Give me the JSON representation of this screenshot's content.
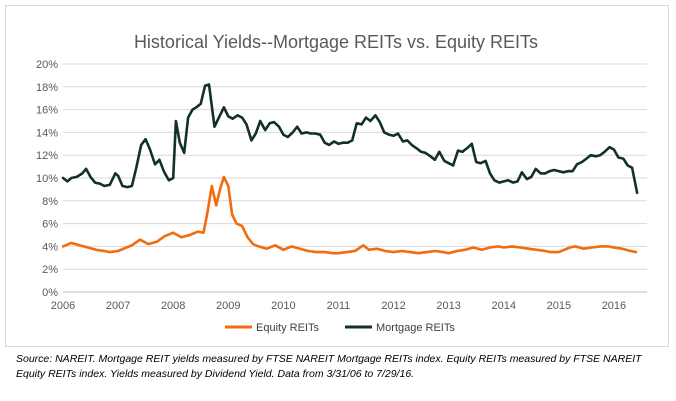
{
  "chart_data": {
    "type": "line",
    "title": "Historical Yields--Mortgage REITs vs. Equity REITs",
    "xlabel": "",
    "ylabel": "",
    "xlim": [
      2006,
      2016.6
    ],
    "ylim": [
      0,
      20
    ],
    "x_ticks": [
      "2006",
      "2007",
      "2008",
      "2009",
      "2010",
      "2011",
      "2012",
      "2013",
      "2014",
      "2015",
      "2016"
    ],
    "y_ticks": [
      "0%",
      "2%",
      "4%",
      "6%",
      "8%",
      "10%",
      "12%",
      "14%",
      "16%",
      "18%",
      "20%"
    ],
    "grid": true,
    "legend_position": "bottom-center",
    "series": [
      {
        "name": "Equity REITs",
        "color": "#f26b0f",
        "points": [
          [
            2006.0,
            4.0
          ],
          [
            2006.15,
            4.3
          ],
          [
            2006.3,
            4.1
          ],
          [
            2006.45,
            3.9
          ],
          [
            2006.6,
            3.7
          ],
          [
            2006.75,
            3.6
          ],
          [
            2006.85,
            3.5
          ],
          [
            2007.0,
            3.6
          ],
          [
            2007.15,
            3.9
          ],
          [
            2007.25,
            4.1
          ],
          [
            2007.4,
            4.6
          ],
          [
            2007.55,
            4.2
          ],
          [
            2007.7,
            4.4
          ],
          [
            2007.85,
            4.9
          ],
          [
            2008.0,
            5.2
          ],
          [
            2008.15,
            4.8
          ],
          [
            2008.3,
            5.0
          ],
          [
            2008.45,
            5.3
          ],
          [
            2008.55,
            5.2
          ],
          [
            2008.62,
            6.9
          ],
          [
            2008.7,
            9.3
          ],
          [
            2008.78,
            7.6
          ],
          [
            2008.85,
            9.0
          ],
          [
            2008.92,
            10.1
          ],
          [
            2009.0,
            9.3
          ],
          [
            2009.07,
            6.8
          ],
          [
            2009.15,
            6.0
          ],
          [
            2009.25,
            5.8
          ],
          [
            2009.35,
            4.8
          ],
          [
            2009.45,
            4.2
          ],
          [
            2009.55,
            4.0
          ],
          [
            2009.7,
            3.8
          ],
          [
            2009.85,
            4.1
          ],
          [
            2010.0,
            3.7
          ],
          [
            2010.15,
            4.0
          ],
          [
            2010.3,
            3.8
          ],
          [
            2010.45,
            3.6
          ],
          [
            2010.6,
            3.5
          ],
          [
            2010.75,
            3.5
          ],
          [
            2010.9,
            3.4
          ],
          [
            2011.0,
            3.4
          ],
          [
            2011.15,
            3.5
          ],
          [
            2011.3,
            3.6
          ],
          [
            2011.45,
            4.1
          ],
          [
            2011.55,
            3.7
          ],
          [
            2011.7,
            3.8
          ],
          [
            2011.85,
            3.6
          ],
          [
            2012.0,
            3.5
          ],
          [
            2012.15,
            3.6
          ],
          [
            2012.3,
            3.5
          ],
          [
            2012.45,
            3.4
          ],
          [
            2012.6,
            3.5
          ],
          [
            2012.75,
            3.6
          ],
          [
            2012.9,
            3.5
          ],
          [
            2013.0,
            3.4
          ],
          [
            2013.15,
            3.6
          ],
          [
            2013.3,
            3.7
          ],
          [
            2013.45,
            3.9
          ],
          [
            2013.6,
            3.7
          ],
          [
            2013.75,
            3.9
          ],
          [
            2013.9,
            4.0
          ],
          [
            2014.0,
            3.9
          ],
          [
            2014.15,
            4.0
          ],
          [
            2014.3,
            3.9
          ],
          [
            2014.45,
            3.8
          ],
          [
            2014.6,
            3.7
          ],
          [
            2014.75,
            3.6
          ],
          [
            2014.85,
            3.5
          ],
          [
            2015.0,
            3.5
          ],
          [
            2015.1,
            3.7
          ],
          [
            2015.2,
            3.9
          ],
          [
            2015.3,
            4.0
          ],
          [
            2015.45,
            3.8
          ],
          [
            2015.6,
            3.9
          ],
          [
            2015.75,
            4.0
          ],
          [
            2015.9,
            4.0
          ],
          [
            2016.0,
            3.9
          ],
          [
            2016.15,
            3.8
          ],
          [
            2016.3,
            3.6
          ],
          [
            2016.4,
            3.5
          ]
        ]
      },
      {
        "name": "Mortgage REITs",
        "color": "#12312c",
        "points": [
          [
            2006.0,
            10.0
          ],
          [
            2006.08,
            9.7
          ],
          [
            2006.15,
            10.0
          ],
          [
            2006.25,
            10.1
          ],
          [
            2006.35,
            10.4
          ],
          [
            2006.42,
            10.8
          ],
          [
            2006.5,
            10.1
          ],
          [
            2006.58,
            9.6
          ],
          [
            2006.67,
            9.5
          ],
          [
            2006.75,
            9.3
          ],
          [
            2006.85,
            9.4
          ],
          [
            2006.95,
            10.4
          ],
          [
            2007.0,
            10.2
          ],
          [
            2007.08,
            9.3
          ],
          [
            2007.17,
            9.2
          ],
          [
            2007.25,
            9.3
          ],
          [
            2007.33,
            10.9
          ],
          [
            2007.42,
            12.9
          ],
          [
            2007.5,
            13.4
          ],
          [
            2007.58,
            12.5
          ],
          [
            2007.67,
            11.2
          ],
          [
            2007.75,
            11.6
          ],
          [
            2007.83,
            10.6
          ],
          [
            2007.92,
            9.8
          ],
          [
            2008.0,
            10.0
          ],
          [
            2008.05,
            15.0
          ],
          [
            2008.12,
            13.1
          ],
          [
            2008.2,
            12.2
          ],
          [
            2008.27,
            15.3
          ],
          [
            2008.35,
            16.0
          ],
          [
            2008.42,
            16.2
          ],
          [
            2008.5,
            16.5
          ],
          [
            2008.58,
            18.1
          ],
          [
            2008.65,
            18.2
          ],
          [
            2008.75,
            14.5
          ],
          [
            2008.83,
            15.3
          ],
          [
            2008.92,
            16.2
          ],
          [
            2009.0,
            15.4
          ],
          [
            2009.08,
            15.2
          ],
          [
            2009.17,
            15.5
          ],
          [
            2009.25,
            15.3
          ],
          [
            2009.33,
            14.7
          ],
          [
            2009.42,
            13.3
          ],
          [
            2009.5,
            13.9
          ],
          [
            2009.58,
            15.0
          ],
          [
            2009.67,
            14.2
          ],
          [
            2009.75,
            14.8
          ],
          [
            2009.83,
            14.9
          ],
          [
            2009.92,
            14.5
          ],
          [
            2010.0,
            13.8
          ],
          [
            2010.08,
            13.6
          ],
          [
            2010.17,
            14.0
          ],
          [
            2010.25,
            14.5
          ],
          [
            2010.33,
            13.9
          ],
          [
            2010.42,
            14.0
          ],
          [
            2010.5,
            13.9
          ],
          [
            2010.58,
            13.9
          ],
          [
            2010.67,
            13.8
          ],
          [
            2010.75,
            13.1
          ],
          [
            2010.83,
            12.9
          ],
          [
            2010.92,
            13.2
          ],
          [
            2011.0,
            13.0
          ],
          [
            2011.08,
            13.1
          ],
          [
            2011.17,
            13.1
          ],
          [
            2011.25,
            13.3
          ],
          [
            2011.33,
            14.8
          ],
          [
            2011.42,
            14.7
          ],
          [
            2011.5,
            15.3
          ],
          [
            2011.58,
            15.0
          ],
          [
            2011.67,
            15.5
          ],
          [
            2011.75,
            14.9
          ],
          [
            2011.83,
            14.0
          ],
          [
            2011.92,
            13.8
          ],
          [
            2012.0,
            13.7
          ],
          [
            2012.08,
            13.9
          ],
          [
            2012.17,
            13.2
          ],
          [
            2012.25,
            13.3
          ],
          [
            2012.33,
            12.9
          ],
          [
            2012.42,
            12.6
          ],
          [
            2012.5,
            12.3
          ],
          [
            2012.58,
            12.2
          ],
          [
            2012.67,
            11.9
          ],
          [
            2012.75,
            11.6
          ],
          [
            2012.83,
            12.3
          ],
          [
            2012.92,
            11.5
          ],
          [
            2013.0,
            11.3
          ],
          [
            2013.08,
            11.1
          ],
          [
            2013.17,
            12.4
          ],
          [
            2013.25,
            12.3
          ],
          [
            2013.33,
            12.6
          ],
          [
            2013.42,
            13.0
          ],
          [
            2013.5,
            11.4
          ],
          [
            2013.58,
            11.3
          ],
          [
            2013.67,
            11.5
          ],
          [
            2013.75,
            10.4
          ],
          [
            2013.83,
            9.8
          ],
          [
            2013.92,
            9.6
          ],
          [
            2014.0,
            9.7
          ],
          [
            2014.08,
            9.8
          ],
          [
            2014.17,
            9.6
          ],
          [
            2014.25,
            9.7
          ],
          [
            2014.33,
            10.5
          ],
          [
            2014.42,
            9.9
          ],
          [
            2014.5,
            10.1
          ],
          [
            2014.58,
            10.8
          ],
          [
            2014.67,
            10.4
          ],
          [
            2014.75,
            10.4
          ],
          [
            2014.83,
            10.6
          ],
          [
            2014.92,
            10.7
          ],
          [
            2015.0,
            10.6
          ],
          [
            2015.08,
            10.5
          ],
          [
            2015.17,
            10.6
          ],
          [
            2015.25,
            10.6
          ],
          [
            2015.33,
            11.2
          ],
          [
            2015.42,
            11.4
          ],
          [
            2015.5,
            11.7
          ],
          [
            2015.58,
            12.0
          ],
          [
            2015.67,
            11.9
          ],
          [
            2015.75,
            12.0
          ],
          [
            2015.83,
            12.3
          ],
          [
            2015.92,
            12.7
          ],
          [
            2016.0,
            12.5
          ],
          [
            2016.08,
            11.8
          ],
          [
            2016.17,
            11.7
          ],
          [
            2016.25,
            11.1
          ],
          [
            2016.33,
            10.9
          ],
          [
            2016.42,
            8.7
          ]
        ]
      }
    ]
  },
  "source_note": "Source: NAREIT. Mortgage REIT yields measured by FTSE NAREIT Mortgage REITs index. Equity REITs measured by FTSE NAREIT Equity REITs index. Yields measured by Dividend Yield. Data from 3/31/06 to 7/29/16."
}
